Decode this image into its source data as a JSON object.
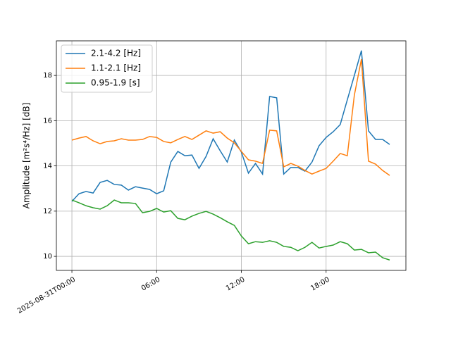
{
  "chart_data": {
    "type": "line",
    "ylabel": "Amplitude [m²s⁴/Hz] [dB]",
    "x": [
      0,
      0.5,
      1,
      1.5,
      2,
      2.5,
      3,
      3.5,
      4,
      4.5,
      5,
      5.5,
      6,
      6.5,
      7,
      7.5,
      8,
      8.5,
      9,
      9.5,
      10,
      10.5,
      11,
      11.5,
      12,
      12.5,
      13,
      13.5,
      14,
      14.5,
      15,
      15.5,
      16,
      16.5,
      17,
      17.5,
      18,
      18.5,
      19,
      19.5,
      20,
      20.5,
      21,
      21.5,
      22,
      22.5
    ],
    "series": [
      {
        "name": "2.1-4.2 [Hz]",
        "color": "#1f77b4",
        "values": [
          12.43,
          12.77,
          12.87,
          12.8,
          13.27,
          13.36,
          13.18,
          13.15,
          12.93,
          13.08,
          13.02,
          12.96,
          12.77,
          12.9,
          14.17,
          14.64,
          14.45,
          14.48,
          13.89,
          14.42,
          15.2,
          14.67,
          14.17,
          15.14,
          14.61,
          13.68,
          14.11,
          13.64,
          17.07,
          17.01,
          13.64,
          13.93,
          13.93,
          13.77,
          14.17,
          14.89,
          15.26,
          15.51,
          15.83,
          16.92,
          18.0,
          19.1,
          15.55,
          15.17,
          15.17,
          14.95
        ]
      },
      {
        "name": "1.1-2.1 [Hz]",
        "color": "#ff7f0e",
        "values": [
          15.14,
          15.23,
          15.3,
          15.11,
          14.98,
          15.08,
          15.11,
          15.2,
          15.14,
          15.14,
          15.17,
          15.3,
          15.26,
          15.08,
          15.02,
          15.17,
          15.3,
          15.17,
          15.36,
          15.55,
          15.45,
          15.51,
          15.23,
          15.02,
          14.64,
          14.27,
          14.21,
          14.11,
          15.58,
          15.55,
          13.96,
          14.11,
          13.99,
          13.8,
          13.64,
          13.77,
          13.89,
          14.21,
          14.55,
          14.45,
          17.13,
          18.72,
          14.21,
          14.08,
          13.8,
          13.58
        ]
      },
      {
        "name": "0.95-1.9 [s]",
        "color": "#2ca02c",
        "values": [
          12.49,
          12.37,
          12.24,
          12.15,
          12.09,
          12.24,
          12.49,
          12.37,
          12.37,
          12.34,
          11.93,
          11.99,
          12.12,
          11.96,
          12.02,
          11.68,
          11.62,
          11.78,
          11.9,
          11.99,
          11.87,
          11.71,
          11.53,
          11.37,
          10.9,
          10.56,
          10.65,
          10.62,
          10.69,
          10.62,
          10.44,
          10.4,
          10.25,
          10.4,
          10.62,
          10.37,
          10.44,
          10.5,
          10.65,
          10.56,
          10.28,
          10.31,
          10.16,
          10.19,
          9.94,
          9.84
        ]
      }
    ],
    "xlim": [
      -1.1,
      23.65
    ],
    "xticks": [
      {
        "value": 0,
        "label": "2025-08-31T00:00"
      },
      {
        "value": 6,
        "label": "06:00"
      },
      {
        "value": 12,
        "label": "12:00"
      },
      {
        "value": 18,
        "label": "18:00"
      }
    ],
    "ylim": [
      9.38,
      19.53
    ],
    "yticks": [
      10,
      12,
      14,
      16,
      18
    ],
    "grid": true,
    "legend": "upper left"
  }
}
